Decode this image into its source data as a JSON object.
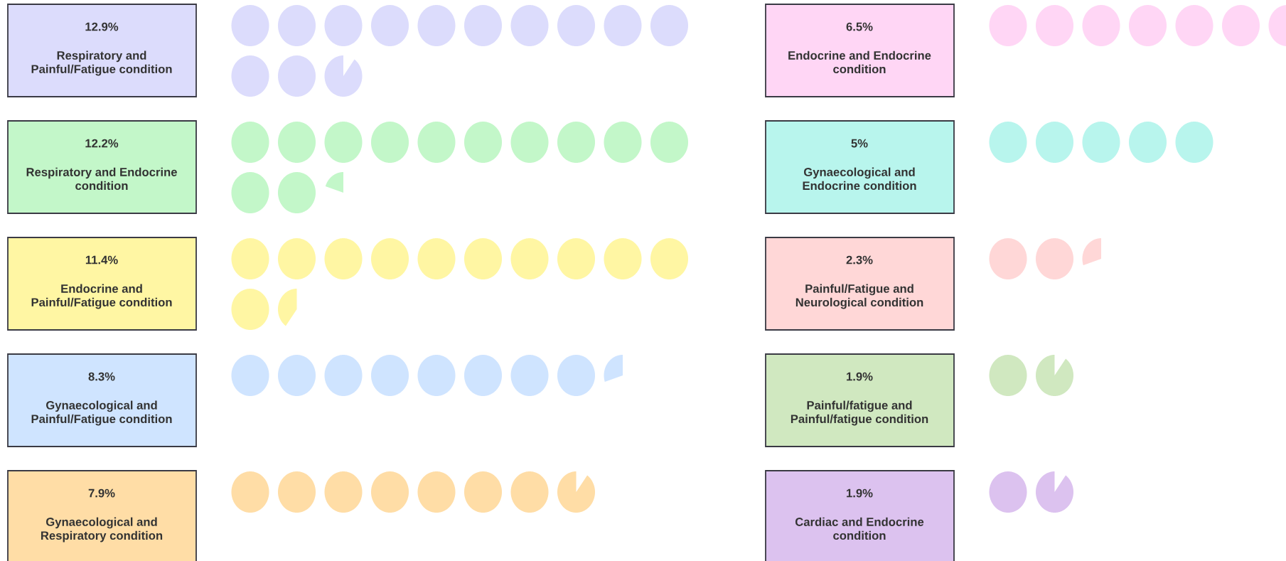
{
  "chart_data": {
    "type": "other",
    "categories": [
      "Respiratory and Painful/Fatigue condition",
      "Respiratory and Endocrine condition",
      "Endocrine and Painful/Fatigue condition",
      "Gynaecological and Painful/Fatigue condition",
      "Gynaecological and Respiratory condition",
      "Endocrine and Endocrine condition",
      "Gynaecological and Endocrine condition",
      "Painful/Fatigue and Neurological condition",
      "Painful/fatigue and Painful/fatigue condition",
      "Cardiac and Endocrine condition"
    ],
    "values": [
      12.9,
      12.2,
      11.4,
      8.3,
      7.9,
      6.5,
      5,
      2.3,
      1.9,
      1.9
    ],
    "value_labels": [
      "12.9%",
      "12.2%",
      "11.4%",
      "8.3%",
      "7.9%",
      "6.5%",
      "5%",
      "2.3%",
      "1.9%",
      "1.9%"
    ],
    "colors": [
      "#dcdcfc",
      "#c3f7c9",
      "#fff6a3",
      "#cfe4ff",
      "#ffdda6",
      "#ffd6f5",
      "#b8f5ed",
      "#ffd7d7",
      "#d0e8c0",
      "#dcc2ef"
    ]
  }
}
